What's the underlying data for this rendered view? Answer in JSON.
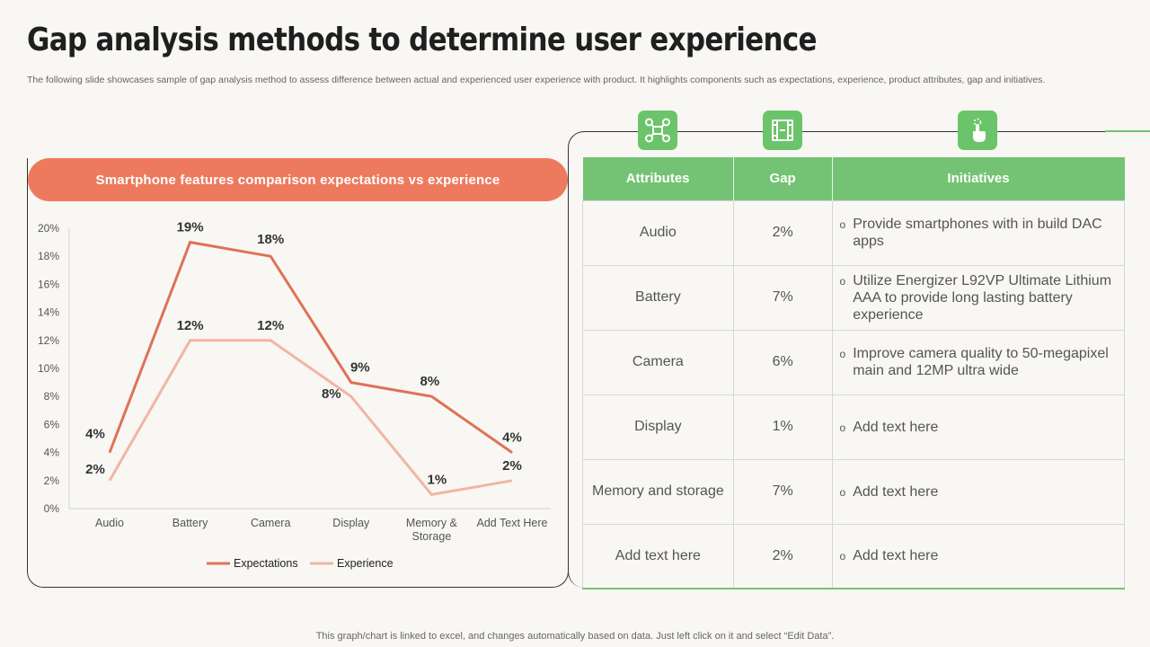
{
  "title": "Gap analysis methods to determine user experience",
  "subtitle": "The following slide showcases sample of gap analysis method to assess difference between actual and experienced user experience with product. It highlights components such as expectations, experience, product attributes, gap and initiatives.",
  "chart_panel": {
    "header": "Smartphone features comparison  expectations vs experience"
  },
  "chart_data": {
    "type": "line",
    "title": "Smartphone features comparison  expectations vs experience",
    "categories": [
      "Audio",
      "Battery",
      "Camera",
      "Display",
      "Memory &\nStorage",
      "Add Text Here"
    ],
    "series": [
      {
        "name": "Expectations",
        "values": [
          4,
          19,
          18,
          9,
          8,
          4
        ],
        "labels": [
          "4%",
          "19%",
          "18%",
          "9%",
          "8%",
          "4%"
        ],
        "color": "#e07158"
      },
      {
        "name": "Experience",
        "values": [
          2,
          12,
          12,
          8,
          1,
          2
        ],
        "labels": [
          "2%",
          "12%",
          "12%",
          "8%",
          "1%",
          "2%"
        ],
        "color": "#f2b5a3"
      }
    ],
    "ylim": [
      0,
      20
    ],
    "yticks": [
      "0%",
      "2%",
      "4%",
      "6%",
      "8%",
      "10%",
      "12%",
      "14%",
      "16%",
      "18%",
      "20%"
    ],
    "xlabel": "",
    "ylabel": "",
    "legend": "bottom"
  },
  "icons": [
    "drone-icon",
    "film-frame-icon",
    "hand-touch-icon"
  ],
  "table": {
    "headers": [
      "Attributes",
      "Gap",
      "Initiatives"
    ],
    "rows": [
      {
        "attribute": "Audio",
        "gap": "2%",
        "initiative": "Provide smartphones with in build DAC apps"
      },
      {
        "attribute": "Battery",
        "gap": "7%",
        "initiative": "Utilize Energizer L92VP Ultimate Lithium AAA to provide long lasting battery experience"
      },
      {
        "attribute": "Camera",
        "gap": "6%",
        "initiative": "Improve camera quality to 50-megapixel main and 12MP ultra wide"
      },
      {
        "attribute": "Display",
        "gap": "1%",
        "initiative": "Add text here"
      },
      {
        "attribute": "Memory and storage",
        "gap": "7%",
        "initiative": "Add text here"
      },
      {
        "attribute": "Add text here",
        "gap": "2%",
        "initiative": "Add text here"
      }
    ],
    "bullet": "o"
  },
  "colors": {
    "accent_orange": "#ee7a5d",
    "accent_green": "#74c374"
  },
  "footer": "This graph/chart is linked to excel,  and changes automatically based on data. Just left click on it and select “Edit Data”."
}
